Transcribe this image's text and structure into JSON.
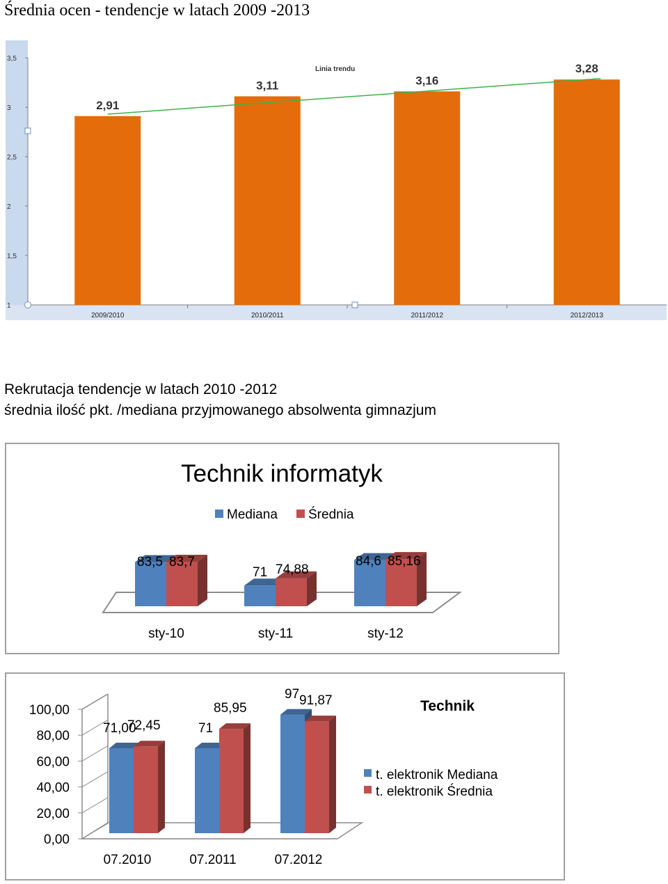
{
  "page_title": "Średnia ocen -  tendencje w latach 2009 -2013",
  "section": {
    "line1": "Rekrutacja tendencje w latach 2010 -2012",
    "line2": "średnia ilość pkt. /mediana  przyjmowanego absolwenta gimnazjum"
  },
  "colors": {
    "orange": "#E46C0A",
    "blue": "#4F81BD",
    "red": "#C0504D",
    "trend": "#3CB34A"
  },
  "chart_data": [
    {
      "type": "bar",
      "title": "",
      "categories": [
        "2009/2010",
        "2010/2011",
        "2011/2012",
        "2012/2013"
      ],
      "values": [
        2.91,
        3.11,
        3.16,
        3.28
      ],
      "value_labels": [
        "2,91",
        "3,11",
        "3,16",
        "3,28"
      ],
      "yticks": [
        "1",
        "1,5",
        "2",
        "2,5",
        "3",
        "3,5"
      ],
      "ylim": [
        1,
        3.5
      ],
      "trend_label": "Linia trendu",
      "trend": [
        2.93,
        3.29
      ],
      "grid": false
    },
    {
      "type": "bar",
      "title": "Technik informatyk",
      "categories": [
        "sty-10",
        "sty-11",
        "sty-12"
      ],
      "legend_position": "top",
      "series": [
        {
          "name": "Mediana",
          "values": [
            83.5,
            71,
            84.6
          ],
          "labels": [
            "83,5",
            "71",
            "84,6"
          ]
        },
        {
          "name": "Średnia",
          "values": [
            83.7,
            74.88,
            85.16
          ],
          "labels": [
            "83,7",
            "74,88",
            "85,16"
          ]
        }
      ],
      "ylim": [
        60,
        90
      ]
    },
    {
      "type": "bar",
      "title": "Technik",
      "categories": [
        "07.2010",
        "07.2011",
        "07.2012"
      ],
      "legend_position": "right",
      "series": [
        {
          "name": "t. elektronik Mediana",
          "values": [
            71.0,
            71,
            97
          ],
          "labels": [
            "71,00",
            "71",
            "97"
          ]
        },
        {
          "name": "t. elektronik Średnia",
          "values": [
            72.45,
            85.95,
            91.87
          ],
          "labels": [
            "72,45",
            "85,95",
            "91,87"
          ]
        }
      ],
      "yticks": [
        "0,00",
        "20,00",
        "40,00",
        "60,00",
        "80,00",
        "100,00"
      ],
      "ylim": [
        0,
        100
      ]
    }
  ]
}
